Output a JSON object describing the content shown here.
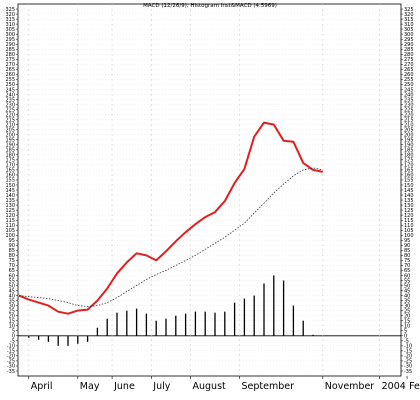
{
  "chart_data": {
    "type": "line",
    "title": "MACD (12/26/9); Histogram Inst&MACD (4.5969)",
    "ylim": [
      -40,
      330
    ],
    "y_tick_step": 5,
    "x_range": [
      0,
      40
    ],
    "grid": true,
    "x_labels": [
      {
        "x": 1.0,
        "label": "April"
      },
      {
        "x": 6.0,
        "label": "May"
      },
      {
        "x": 9.5,
        "label": "June"
      },
      {
        "x": 13.5,
        "label": "July"
      },
      {
        "x": 17.5,
        "label": "August"
      },
      {
        "x": 22.5,
        "label": "September"
      },
      {
        "x": 31.0,
        "label": "November"
      },
      {
        "x": 36.8,
        "label": "2004"
      },
      {
        "x": 39.6,
        "label": "Fel"
      }
    ],
    "series": [
      {
        "style": "solid",
        "color": "#e02020",
        "x": [
          0,
          1,
          2,
          3,
          4,
          5,
          6,
          7,
          8,
          9,
          10,
          11,
          12,
          13,
          14,
          15,
          16,
          17,
          18,
          19,
          20,
          21,
          22,
          23,
          24,
          25,
          26,
          27,
          28,
          29,
          30,
          31
        ],
        "values": [
          40,
          36,
          33,
          30,
          24,
          22,
          25,
          26,
          35,
          47,
          62,
          73,
          82,
          80,
          75,
          84,
          94,
          103,
          111,
          118,
          123,
          134,
          152,
          166,
          198,
          212,
          210,
          194,
          193,
          172,
          165,
          163
        ]
      },
      {
        "style": "dotted",
        "color": "#333333",
        "x": [
          0,
          1,
          2,
          3,
          4,
          5,
          6,
          7,
          8,
          9,
          10,
          11,
          12,
          13,
          14,
          15,
          16,
          17,
          18,
          19,
          20,
          21,
          22,
          23,
          24,
          25,
          26,
          27,
          28,
          29,
          30,
          31
        ],
        "values": [
          40,
          39,
          38,
          37,
          35,
          33,
          30,
          29,
          30,
          33,
          38,
          44,
          50,
          56,
          61,
          65,
          70,
          75,
          80,
          86,
          92,
          98,
          105,
          112,
          122,
          132,
          142,
          151,
          159,
          165,
          167,
          165
        ]
      },
      {
        "style": "histogram",
        "color": "#000000",
        "x": [
          1,
          2,
          3,
          4,
          5,
          6,
          7,
          8,
          9,
          10,
          11,
          12,
          13,
          14,
          15,
          16,
          17,
          18,
          19,
          20,
          21,
          22,
          23,
          24,
          25,
          26,
          27,
          28,
          29,
          30
        ],
        "values": [
          -2,
          -4,
          -6,
          -10,
          -10,
          -8,
          -6,
          8,
          17,
          23,
          25,
          27,
          22,
          15,
          17,
          20,
          22,
          24,
          24,
          23,
          24,
          33,
          37,
          40,
          52,
          60,
          55,
          30,
          15,
          1
        ]
      }
    ]
  }
}
